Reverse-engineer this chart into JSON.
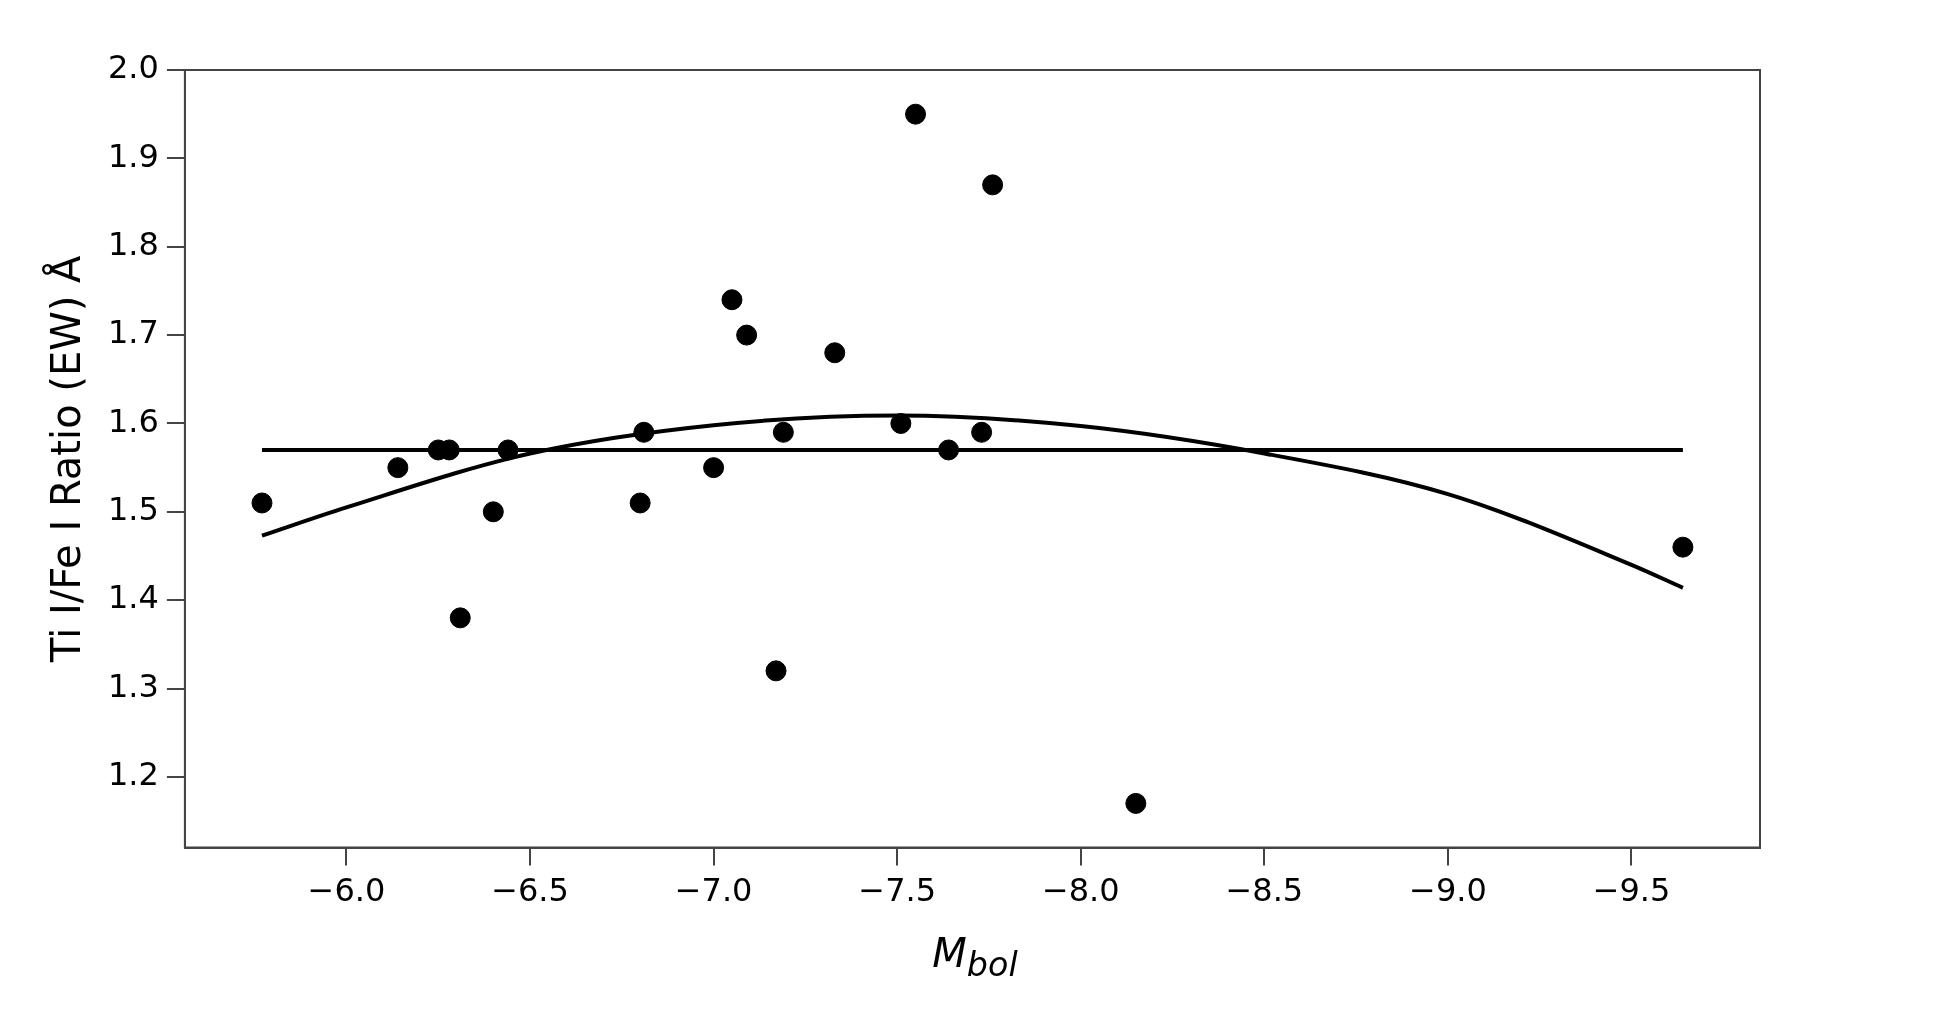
{
  "chart_data": {
    "type": "scatter",
    "xlabel": "M$_{bol}$",
    "ylabel": "Ti I/Fe I Ratio (EW) Å",
    "xlim": [
      -5.56,
      -9.85
    ],
    "ylim": [
      1.12,
      2.0
    ],
    "xticks": [
      {
        "value": -6,
        "label": "−6.0"
      },
      {
        "value": -6.5,
        "label": "−6.5"
      },
      {
        "value": -7,
        "label": "−7.0"
      },
      {
        "value": -7.5,
        "label": "−7.5"
      },
      {
        "value": -8,
        "label": "−8.0"
      },
      {
        "value": -8.5,
        "label": "−8.5"
      },
      {
        "value": -9,
        "label": "−9.0"
      },
      {
        "value": -9.5,
        "label": "−9.5"
      }
    ],
    "yticks": [
      1.2,
      1.3,
      1.4,
      1.5,
      1.6,
      1.7,
      1.8,
      1.9,
      {
        "value": 2,
        "label": "2.0"
      }
    ],
    "grid": false,
    "legend": false,
    "series": [
      {
        "color": "#000000",
        "marker": "circle",
        "x": [
          -5.77,
          -6.14,
          -6.25,
          -6.28,
          -6.31,
          -6.4,
          -6.44,
          -6.8,
          -6.81,
          -7.0,
          -7.05,
          -7.09,
          -7.17,
          -7.19,
          -7.33,
          -7.51,
          -7.55,
          -7.64,
          -7.73,
          -7.76,
          -8.15,
          -9.64
        ],
        "values": [
          1.51,
          1.55,
          1.57,
          1.57,
          1.38,
          1.5,
          1.57,
          1.51,
          1.59,
          1.55,
          1.74,
          1.7,
          1.32,
          1.59,
          1.68,
          1.6,
          1.95,
          1.57,
          1.59,
          1.87,
          1.17,
          1.46
        ]
      },
      {
        "type": "line",
        "color": "#000000",
        "marker": "none",
        "line_style": "solid",
        "x": [
          -5.77,
          -9.64
        ],
        "values": [
          1.57,
          1.57
        ]
      },
      {
        "type": "line",
        "color": "#000000",
        "marker": "none",
        "line_style": "solid",
        "x": [
          -5.77,
          -6.0,
          -6.5,
          -7.0,
          -7.5,
          -8.0,
          -8.5,
          -9.0,
          -9.5,
          -9.64
        ],
        "values": [
          1.473,
          1.505,
          1.566,
          1.598,
          1.609,
          1.597,
          1.566,
          1.52,
          1.44,
          1.414
        ]
      }
    ]
  }
}
